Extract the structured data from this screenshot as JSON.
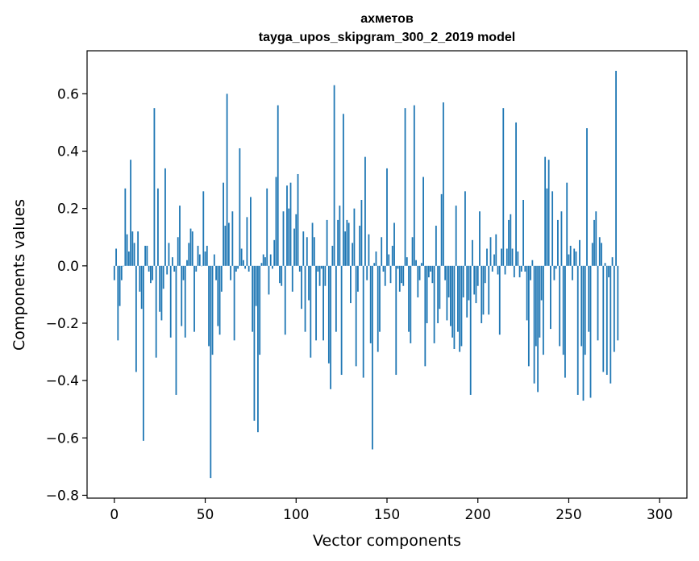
{
  "chart_data": {
    "type": "bar",
    "title": "ахметов",
    "subtitle": "tayga_upos_skipgram_300_2_2019 model",
    "xlabel": "Vector components",
    "ylabel": "Components values",
    "xlim": [
      -15,
      315
    ],
    "ylim": [
      -0.81,
      0.75
    ],
    "xticks": [
      0,
      50,
      100,
      150,
      200,
      250,
      300
    ],
    "yticks": [
      -0.8,
      -0.6,
      -0.4,
      -0.2,
      0.0,
      0.2,
      0.4,
      0.6
    ],
    "ytick_labels": [
      "−0.8",
      "−0.6",
      "−0.4",
      "−0.2",
      "0.0",
      "0.2",
      "0.4",
      "0.6"
    ],
    "bar_color": "#1f77b4",
    "values": [
      -0.05,
      0.06,
      -0.26,
      -0.14,
      -0.05,
      0.0,
      0.27,
      0.11,
      0.05,
      0.37,
      0.12,
      0.08,
      -0.37,
      0.12,
      -0.09,
      -0.15,
      -0.61,
      0.07,
      0.07,
      -0.02,
      -0.06,
      -0.05,
      0.55,
      -0.32,
      0.27,
      -0.16,
      -0.19,
      -0.08,
      0.34,
      -0.03,
      0.08,
      -0.25,
      0.03,
      -0.02,
      -0.45,
      0.1,
      0.21,
      -0.21,
      -0.05,
      -0.25,
      0.02,
      0.08,
      0.13,
      0.12,
      -0.23,
      -0.02,
      0.07,
      0.04,
      0.0,
      0.26,
      0.05,
      0.07,
      -0.28,
      -0.74,
      -0.31,
      0.04,
      -0.05,
      -0.21,
      -0.24,
      -0.09,
      0.29,
      0.14,
      0.6,
      0.15,
      -0.05,
      0.19,
      -0.26,
      -0.02,
      -0.01,
      0.41,
      0.06,
      0.02,
      -0.01,
      0.17,
      -0.02,
      0.24,
      -0.23,
      -0.54,
      -0.14,
      -0.58,
      -0.31,
      0.01,
      0.04,
      0.03,
      0.27,
      -0.1,
      0.04,
      -0.01,
      0.09,
      0.31,
      0.56,
      -0.06,
      -0.07,
      0.19,
      -0.24,
      0.28,
      0.2,
      0.29,
      -0.09,
      0.13,
      0.18,
      0.32,
      -0.02,
      -0.15,
      0.12,
      -0.23,
      0.1,
      -0.12,
      -0.32,
      0.15,
      0.1,
      -0.26,
      -0.02,
      -0.07,
      -0.01,
      -0.26,
      -0.07,
      0.16,
      -0.34,
      -0.43,
      0.07,
      0.63,
      -0.23,
      0.16,
      0.21,
      -0.38,
      0.53,
      0.12,
      0.16,
      0.15,
      -0.13,
      0.08,
      0.2,
      -0.35,
      -0.09,
      0.14,
      0.23,
      -0.39,
      0.38,
      -0.05,
      0.11,
      -0.27,
      -0.64,
      0.01,
      0.05,
      -0.3,
      -0.23,
      0.1,
      -0.02,
      -0.07,
      0.34,
      0.04,
      -0.06,
      0.07,
      0.15,
      -0.38,
      -0.01,
      -0.09,
      -0.06,
      -0.07,
      0.55,
      0.03,
      -0.23,
      -0.27,
      0.1,
      0.56,
      0.02,
      -0.11,
      -0.05,
      0.01,
      0.31,
      -0.35,
      -0.2,
      -0.04,
      -0.02,
      -0.06,
      -0.27,
      0.14,
      -0.2,
      -0.15,
      0.25,
      0.57,
      -0.05,
      -0.19,
      -0.11,
      -0.21,
      -0.25,
      -0.29,
      0.21,
      -0.23,
      -0.3,
      -0.28,
      -0.11,
      0.26,
      -0.18,
      -0.12,
      -0.45,
      0.09,
      -0.1,
      -0.13,
      -0.07,
      0.19,
      -0.2,
      -0.17,
      -0.06,
      0.06,
      -0.17,
      0.1,
      -0.02,
      0.04,
      0.11,
      -0.03,
      -0.24,
      0.06,
      0.55,
      -0.03,
      0.06,
      0.16,
      0.18,
      0.06,
      -0.04,
      0.5,
      0.05,
      -0.04,
      -0.02,
      0.23,
      -0.02,
      -0.19,
      -0.35,
      -0.05,
      0.02,
      -0.41,
      -0.28,
      -0.44,
      -0.25,
      -0.12,
      -0.31,
      0.38,
      0.27,
      0.37,
      -0.22,
      0.26,
      -0.05,
      -0.01,
      0.16,
      -0.28,
      0.19,
      -0.31,
      -0.39,
      0.29,
      0.04,
      0.07,
      -0.05,
      0.06,
      0.05,
      -0.45,
      0.09,
      -0.28,
      -0.47,
      -0.31,
      0.48,
      -0.23,
      -0.46,
      0.08,
      0.16,
      0.19,
      -0.26,
      0.1,
      0.08,
      -0.37,
      0.01,
      -0.38,
      -0.04,
      -0.41,
      0.03,
      -0.3,
      0.68,
      -0.26
    ]
  }
}
